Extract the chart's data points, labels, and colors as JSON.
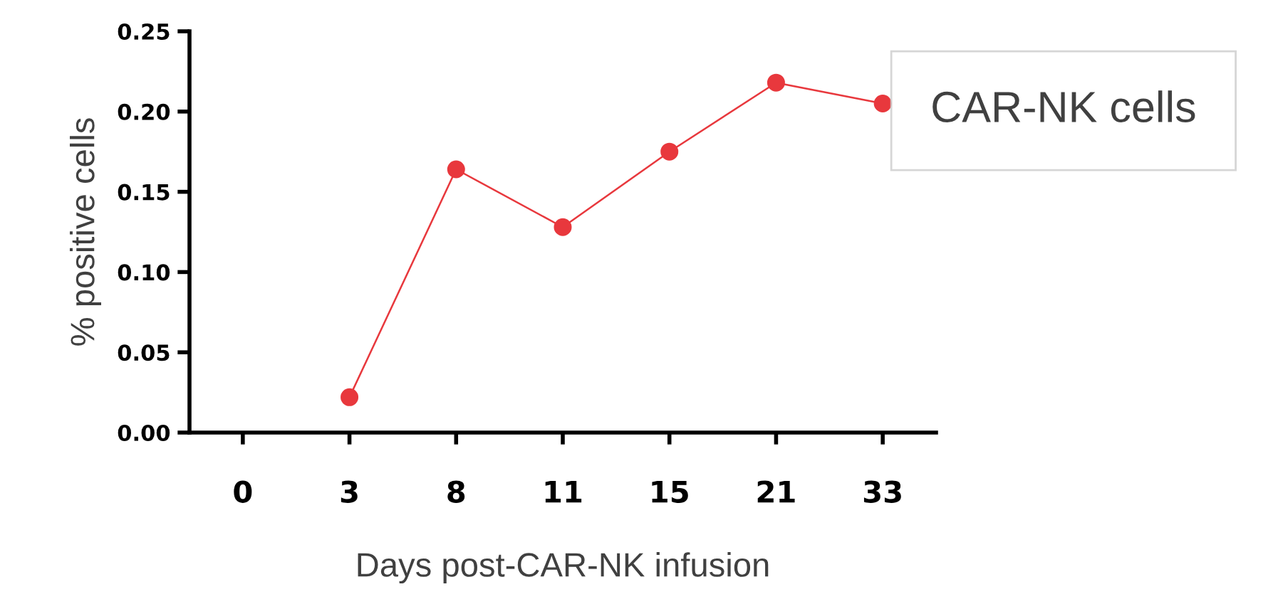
{
  "chart_data": {
    "type": "line",
    "xlabel": "Days post-CAR-NK infusion",
    "ylabel": "% positive cells",
    "categories": [
      "0",
      "3",
      "8",
      "11",
      "15",
      "21",
      "33"
    ],
    "series": [
      {
        "name": "CAR-NK cells",
        "color": "#e8383d",
        "values": [
          null,
          0.022,
          0.164,
          0.128,
          0.175,
          0.218,
          0.205
        ]
      }
    ],
    "ylim": [
      0,
      0.25
    ],
    "yticks": [
      {
        "value": 0,
        "label": "0.00"
      },
      {
        "value": 0.05,
        "label": "0.05"
      },
      {
        "value": 0.1,
        "label": "0.10"
      },
      {
        "value": 0.15,
        "label": "0.15"
      },
      {
        "value": 0.2,
        "label": "0.20"
      },
      {
        "value": 0.25,
        "label": "0.25"
      }
    ],
    "marker": "circle",
    "line_style": "solid",
    "grid": false,
    "legend": "top right"
  }
}
